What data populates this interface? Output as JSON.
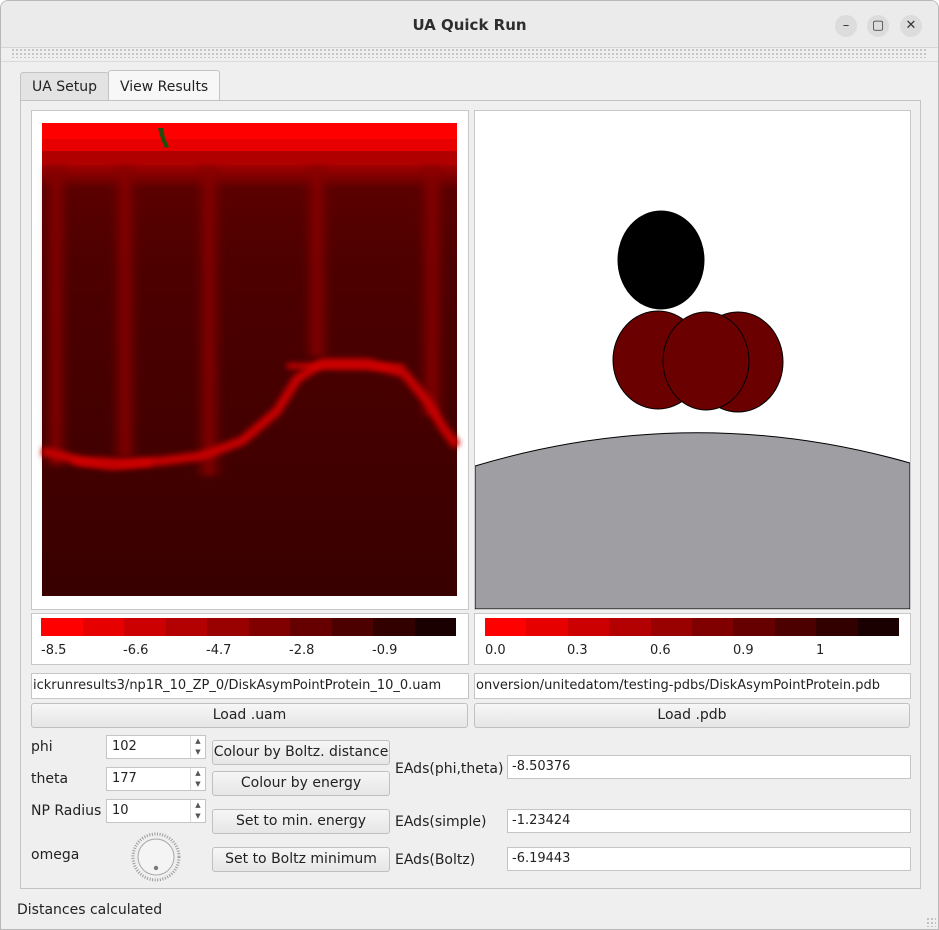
{
  "window": {
    "title": "UA Quick Run",
    "close_glyph": "✕",
    "maximize_glyph": "▢",
    "minimize_glyph": "–"
  },
  "tabs": [
    {
      "label": "UA Setup"
    },
    {
      "label": "View Results"
    }
  ],
  "left_colorbar": {
    "ticks": [
      "-8.5",
      "-6.6",
      "-4.7",
      "-2.8",
      "-0.9"
    ],
    "colors": [
      "#ff0000",
      "#e60000",
      "#cc0000",
      "#b30000",
      "#990000",
      "#800000",
      "#660000",
      "#4d0000",
      "#330000",
      "#1a0000"
    ]
  },
  "right_colorbar": {
    "ticks": [
      "0.0",
      "0.3",
      "0.6",
      "0.9",
      "1"
    ],
    "colors": [
      "#ff0000",
      "#e60000",
      "#cc0000",
      "#b30000",
      "#990000",
      "#800000",
      "#660000",
      "#4d0000",
      "#330000",
      "#1a0000"
    ]
  },
  "uam_path": "ickrunresults3/np1R_10_ZP_0/DiskAsymPointProtein_10_0.uam",
  "pdb_path": "onversion/unitedatom/testing-pdbs/DiskAsymPointProtein.pdb",
  "buttons": {
    "load_uam": "Load .uam",
    "load_pdb": "Load .pdb",
    "colour_boltz": "Colour by Boltz. distance",
    "colour_energy": "Colour by energy",
    "set_min_energy": "Set to min. energy",
    "set_boltz_min": "Set to Boltz minimum"
  },
  "controls": {
    "phi": {
      "label": "phi",
      "value": "102"
    },
    "theta": {
      "label": "theta",
      "value": "177"
    },
    "np_radius": {
      "label": "NP Radius",
      "value": "10"
    },
    "omega": {
      "label": "omega"
    }
  },
  "results": {
    "eads_phi_theta": {
      "label": "EAds(phi,theta)",
      "value": "-8.50376"
    },
    "eads_simple": {
      "label": "EAds(simple)",
      "value": "-1.23424"
    },
    "eads_boltz": {
      "label": "EAds(Boltz)",
      "value": "-6.19443"
    }
  },
  "colors": {
    "nanoparticle": "#9e9ea3",
    "atom_dark": "#6b0000",
    "atom_black": "#000000"
  },
  "status": "Distances calculated"
}
